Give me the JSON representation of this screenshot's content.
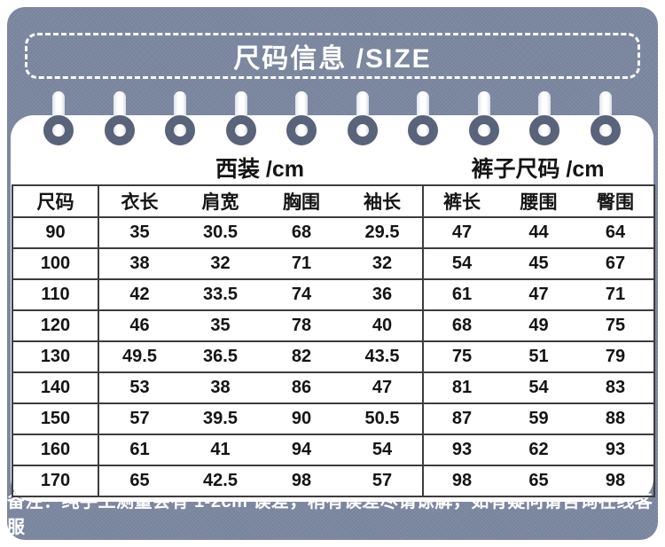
{
  "header": {
    "title": "尺码信息 /SIZE"
  },
  "size_table": {
    "group_headers": [
      {
        "label": "西装 /cm"
      },
      {
        "label": "裤子尺码 /cm"
      }
    ],
    "columns": [
      "尺码",
      "衣长",
      "肩宽",
      "胸围",
      "袖长",
      "裤长",
      "腰围",
      "臀围"
    ],
    "rows": [
      [
        "90",
        "35",
        "30.5",
        "68",
        "29.5",
        "47",
        "44",
        "64"
      ],
      [
        "100",
        "38",
        "32",
        "71",
        "32",
        "54",
        "45",
        "67"
      ],
      [
        "110",
        "42",
        "33.5",
        "74",
        "36",
        "61",
        "47",
        "71"
      ],
      [
        "120",
        "46",
        "35",
        "78",
        "40",
        "68",
        "49",
        "75"
      ],
      [
        "130",
        "49.5",
        "36.5",
        "82",
        "43.5",
        "75",
        "51",
        "79"
      ],
      [
        "140",
        "53",
        "38",
        "86",
        "47",
        "81",
        "54",
        "83"
      ],
      [
        "150",
        "57",
        "39.5",
        "90",
        "50.5",
        "87",
        "59",
        "88"
      ],
      [
        "160",
        "61",
        "41",
        "94",
        "54",
        "93",
        "62",
        "93"
      ],
      [
        "170",
        "65",
        "42.5",
        "98",
        "57",
        "98",
        "65",
        "98"
      ]
    ]
  },
  "footer": {
    "note": "备注：纯手工测量会有 1-2cm 误差，稍有误差尽请谅解，如有疑问请咨询在线客服"
  },
  "decor": {
    "binder_ring_count": 10
  },
  "colors": {
    "panel_bg": "#7c88a1",
    "card_bg": "#ffffff",
    "ring": "#59637a",
    "table_border": "#3d3d3d",
    "text_dark": "#141414",
    "text_light": "#ffffff"
  }
}
